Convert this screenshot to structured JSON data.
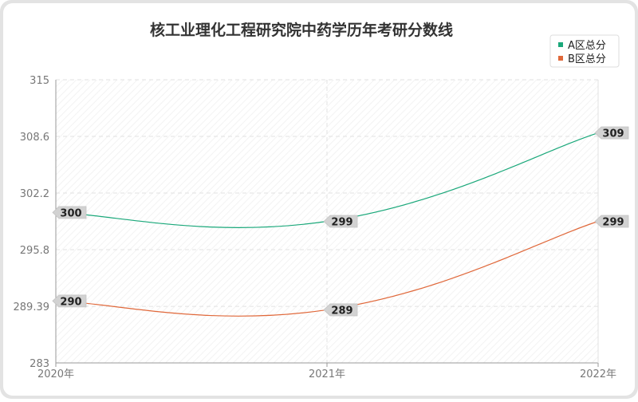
{
  "chart_data": {
    "type": "line",
    "title": "核工业理化工程研究院中药学历年考研分数线",
    "categories": [
      "2020年",
      "2021年",
      "2022年"
    ],
    "y_ticks": [
      "283",
      "289.39",
      "295.8",
      "302.2",
      "308.6",
      "315"
    ],
    "ylim": [
      283,
      315
    ],
    "grid": true,
    "legend_position": "top-right",
    "series": [
      {
        "name": "A区总分",
        "color": "#1aa87a",
        "values": [
          300,
          299,
          309
        ],
        "labels": [
          "300",
          "299",
          "309"
        ]
      },
      {
        "name": "B区总分",
        "color": "#e0683a",
        "values": [
          290,
          289,
          299
        ],
        "labels": [
          "290",
          "289",
          "299"
        ]
      }
    ]
  },
  "colors": {
    "frame_bg": "#e3e3e3",
    "plot_bg": "#ffffff",
    "grid": "#e6e6e6",
    "label_bg": "#d2d2d2"
  }
}
